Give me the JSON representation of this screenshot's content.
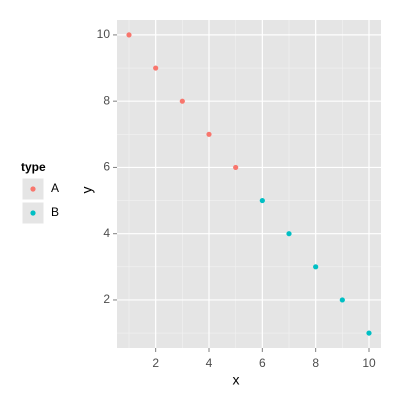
{
  "chart_data": {
    "type": "scatter",
    "x_label": "x",
    "y_label": "y",
    "legend_title": "type",
    "series": [
      {
        "name": "A",
        "color": "#F8766D",
        "x": [
          1,
          2,
          3,
          4,
          5
        ],
        "values": [
          10,
          9,
          8,
          7,
          6
        ]
      },
      {
        "name": "B",
        "color": "#00BFC4",
        "x": [
          6,
          7,
          8,
          9,
          10
        ],
        "values": [
          5,
          4,
          3,
          2,
          1
        ]
      }
    ],
    "xlim": [
      0.55,
      10.45
    ],
    "ylim": [
      0.55,
      10.45
    ],
    "xticks": [
      2,
      4,
      6,
      8,
      10
    ],
    "yticks": [
      2,
      4,
      6,
      8,
      10
    ],
    "x_minor_ticks": [
      1,
      3,
      5,
      7,
      9
    ],
    "y_minor_ticks": [
      1,
      3,
      5,
      7,
      9
    ],
    "grid": true,
    "legend_position": "left"
  }
}
